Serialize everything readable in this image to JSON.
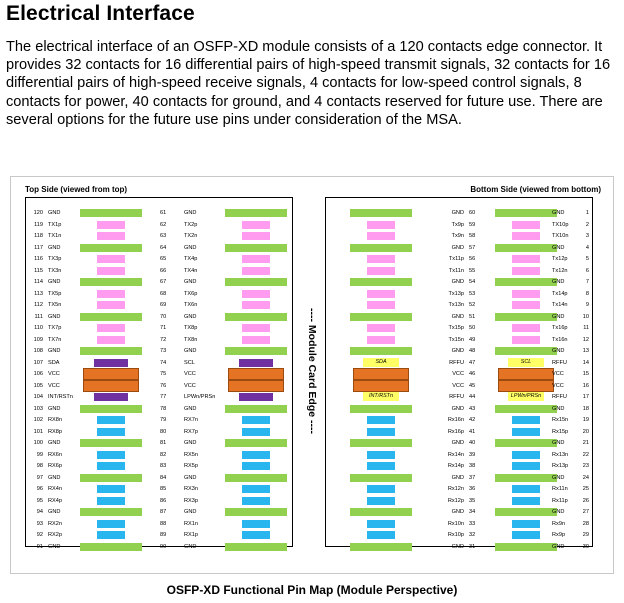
{
  "heading": "Electrical Interface",
  "paragraph": "The electrical interface of an OSFP-XD module consists of a 120 contacts edge connector. It provides 32 contacts for 16 differential pairs of high-speed transmit signals, 32 contacts for 16 differential pairs of high-speed receive signals, 4 contacts for low-speed control signals, 8 contacts for power, 40 contacts for ground, and 4 contacts reserved for future use. There are several options for the future use pins under consideration of the MSA.",
  "figure": {
    "top_side_label": "Top Side (viewed from top)",
    "bottom_side_label": "Bottom Side (viewed from bottom)",
    "edge_label": "---- Module Card Edge ----",
    "caption": "OSFP-XD Functional Pin Map (Module Perspective)"
  },
  "colors": {
    "ground": "#92d050",
    "transmit": "#ff9cf0",
    "receive": "#29b6ee",
    "control_top": "#7030a0",
    "control_bottom": "#ffff66",
    "power": "#e47323"
  },
  "top_rows": [
    {
      "pin_a": "120",
      "name_a": "GND",
      "pin_b": "61",
      "name_b": "GND"
    },
    {
      "pin_a": "119",
      "name_a": "TX1p",
      "pin_b": "62",
      "name_b": "TX2p"
    },
    {
      "pin_a": "118",
      "name_a": "TX1n",
      "pin_b": "63",
      "name_b": "TX2n"
    },
    {
      "pin_a": "117",
      "name_a": "GND",
      "pin_b": "64",
      "name_b": "GND"
    },
    {
      "pin_a": "116",
      "name_a": "TX3p",
      "pin_b": "65",
      "name_b": "TX4p"
    },
    {
      "pin_a": "115",
      "name_a": "TX3n",
      "pin_b": "66",
      "name_b": "TX4n"
    },
    {
      "pin_a": "114",
      "name_a": "GND",
      "pin_b": "67",
      "name_b": "GND"
    },
    {
      "pin_a": "113",
      "name_a": "TX5p",
      "pin_b": "68",
      "name_b": "TX6p"
    },
    {
      "pin_a": "112",
      "name_a": "TX5n",
      "pin_b": "69",
      "name_b": "TX6n"
    },
    {
      "pin_a": "111",
      "name_a": "GND",
      "pin_b": "70",
      "name_b": "GND"
    },
    {
      "pin_a": "110",
      "name_a": "TX7p",
      "pin_b": "71",
      "name_b": "TX8p"
    },
    {
      "pin_a": "109",
      "name_a": "TX7n",
      "pin_b": "72",
      "name_b": "TX8n"
    },
    {
      "pin_a": "108",
      "name_a": "GND",
      "pin_b": "73",
      "name_b": "GND"
    },
    {
      "pin_a": "107",
      "name_a": "SDA",
      "pin_b": "74",
      "name_b": "SCL"
    },
    {
      "pin_a": "106",
      "name_a": "VCC",
      "pin_b": "75",
      "name_b": "VCC"
    },
    {
      "pin_a": "105",
      "name_a": "VCC",
      "pin_b": "76",
      "name_b": "VCC"
    },
    {
      "pin_a": "104",
      "name_a": "INT/RSTn",
      "pin_b": "77",
      "name_b": "LPWn/PRSn"
    },
    {
      "pin_a": "103",
      "name_a": "GND",
      "pin_b": "78",
      "name_b": "GND"
    },
    {
      "pin_a": "102",
      "name_a": "RX8n",
      "pin_b": "79",
      "name_b": "RX7n"
    },
    {
      "pin_a": "101",
      "name_a": "RX8p",
      "pin_b": "80",
      "name_b": "RX7p"
    },
    {
      "pin_a": "100",
      "name_a": "GND",
      "pin_b": "81",
      "name_b": "GND"
    },
    {
      "pin_a": "99",
      "name_a": "RX6n",
      "pin_b": "82",
      "name_b": "RX5n"
    },
    {
      "pin_a": "98",
      "name_a": "RX6p",
      "pin_b": "83",
      "name_b": "RX5p"
    },
    {
      "pin_a": "97",
      "name_a": "GND",
      "pin_b": "84",
      "name_b": "GND"
    },
    {
      "pin_a": "96",
      "name_a": "RX4n",
      "pin_b": "85",
      "name_b": "RX3n"
    },
    {
      "pin_a": "95",
      "name_a": "RX4p",
      "pin_b": "86",
      "name_b": "RX3p"
    },
    {
      "pin_a": "94",
      "name_a": "GND",
      "pin_b": "87",
      "name_b": "GND"
    },
    {
      "pin_a": "93",
      "name_a": "RX2n",
      "pin_b": "88",
      "name_b": "RX1n"
    },
    {
      "pin_a": "92",
      "name_a": "RX2p",
      "pin_b": "89",
      "name_b": "RX1p"
    },
    {
      "pin_a": "91",
      "name_a": "GND",
      "pin_b": "90",
      "name_b": "GND"
    }
  ],
  "bottom_rows": [
    {
      "name_a": "GND",
      "pin_a": "60",
      "name_b": "GND",
      "pin_b": "1"
    },
    {
      "name_a": "Tx9p",
      "pin_a": "59",
      "name_b": "TX10p",
      "pin_b": "2"
    },
    {
      "name_a": "Tx9n",
      "pin_a": "58",
      "name_b": "TX10n",
      "pin_b": "3"
    },
    {
      "name_a": "GND",
      "pin_a": "57",
      "name_b": "GND",
      "pin_b": "4"
    },
    {
      "name_a": "Tx11p",
      "pin_a": "56",
      "name_b": "Tx12p",
      "pin_b": "5"
    },
    {
      "name_a": "Tx11n",
      "pin_a": "55",
      "name_b": "Tx12n",
      "pin_b": "6"
    },
    {
      "name_a": "GND",
      "pin_a": "54",
      "name_b": "GND",
      "pin_b": "7"
    },
    {
      "name_a": "Tx13p",
      "pin_a": "53",
      "name_b": "Tx14p",
      "pin_b": "8"
    },
    {
      "name_a": "Tx13n",
      "pin_a": "52",
      "name_b": "Tx14n",
      "pin_b": "9"
    },
    {
      "name_a": "GND",
      "pin_a": "51",
      "name_b": "GND",
      "pin_b": "10"
    },
    {
      "name_a": "Tx15p",
      "pin_a": "50",
      "name_b": "Tx16p",
      "pin_b": "11"
    },
    {
      "name_a": "Tx15n",
      "pin_a": "49",
      "name_b": "Tx16n",
      "pin_b": "12"
    },
    {
      "name_a": "GND",
      "pin_a": "48",
      "name_b": "GND",
      "pin_b": "13"
    },
    {
      "name_a": "RFFU",
      "pin_a": "47",
      "name_b": "RFFU",
      "pin_b": "14",
      "pad_a": "SDA",
      "pad_b": "SCL"
    },
    {
      "name_a": "VCC",
      "pin_a": "46",
      "name_b": "VCC",
      "pin_b": "15"
    },
    {
      "name_a": "VCC",
      "pin_a": "45",
      "name_b": "VCC",
      "pin_b": "16"
    },
    {
      "name_a": "RFFU",
      "pin_a": "44",
      "name_b": "RFFU",
      "pin_b": "17",
      "pad_a": "INT/RSTn",
      "pad_b": "LPWn/PRSn"
    },
    {
      "name_a": "GND",
      "pin_a": "43",
      "name_b": "GND",
      "pin_b": "18"
    },
    {
      "name_a": "Rx16n",
      "pin_a": "42",
      "name_b": "Rx15n",
      "pin_b": "19"
    },
    {
      "name_a": "Rx16p",
      "pin_a": "41",
      "name_b": "Rx15p",
      "pin_b": "20"
    },
    {
      "name_a": "GND",
      "pin_a": "40",
      "name_b": "GND",
      "pin_b": "21"
    },
    {
      "name_a": "Rx14n",
      "pin_a": "39",
      "name_b": "Rx13n",
      "pin_b": "22"
    },
    {
      "name_a": "Rx14p",
      "pin_a": "38",
      "name_b": "Rx13p",
      "pin_b": "23"
    },
    {
      "name_a": "GND",
      "pin_a": "37",
      "name_b": "GND",
      "pin_b": "24"
    },
    {
      "name_a": "Rx12n",
      "pin_a": "36",
      "name_b": "Rx11n",
      "pin_b": "25"
    },
    {
      "name_a": "Rx12p",
      "pin_a": "35",
      "name_b": "Rx11p",
      "pin_b": "26"
    },
    {
      "name_a": "GND",
      "pin_a": "34",
      "name_b": "GND",
      "pin_b": "27"
    },
    {
      "name_a": "Rx10n",
      "pin_a": "33",
      "name_b": "Rx9n",
      "pin_b": "28"
    },
    {
      "name_a": "Rx10p",
      "pin_a": "32",
      "name_b": "Rx9p",
      "pin_b": "29"
    },
    {
      "name_a": "GND",
      "pin_a": "31",
      "name_b": "GND",
      "pin_b": "30"
    }
  ]
}
